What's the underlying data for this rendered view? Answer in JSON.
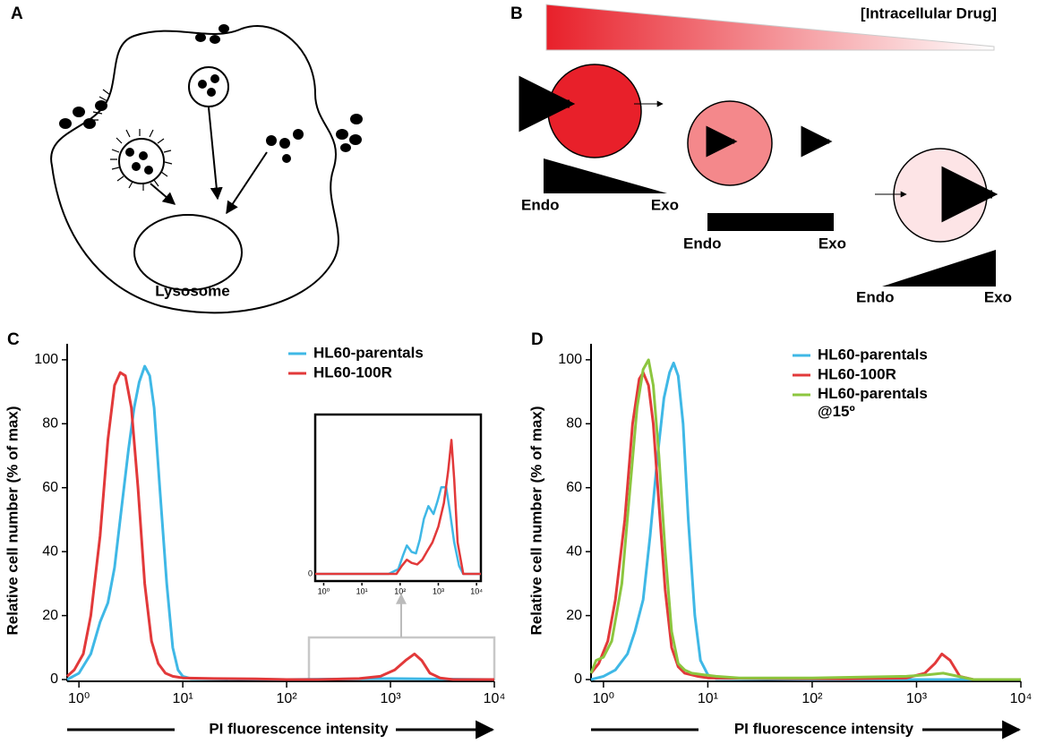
{
  "panels": {
    "A": {
      "label": "A",
      "lysosome": "Lysosome"
    },
    "B": {
      "label": "B",
      "gradient_label": "[Intracellular Drug]",
      "states": [
        {
          "endo": "Endo",
          "exo": "Exo"
        },
        {
          "endo": "Endo",
          "exo": "Exo"
        },
        {
          "endo": "Endo",
          "exo": "Exo"
        }
      ]
    }
  },
  "chart_data": [
    {
      "type": "line",
      "panel_label": "C",
      "xlabel": "PI fluorescence intensity",
      "ylabel": "Relative cell number (% of max)",
      "xscale": "log",
      "xlim": [
        0.77,
        10000
      ],
      "ylim": [
        0,
        105
      ],
      "xticks": [
        {
          "value": 1,
          "label": "10⁰"
        },
        {
          "value": 10,
          "label": "10¹"
        },
        {
          "value": 100,
          "label": "10²"
        },
        {
          "value": 1000,
          "label": "10³"
        },
        {
          "value": 10000,
          "label": "10⁴"
        }
      ],
      "yticks": [
        0,
        20,
        40,
        60,
        80,
        100
      ],
      "legend": "upper right",
      "series": [
        {
          "name": "HL60-parentals",
          "color": "#3fb8e6",
          "x": [
            0.77,
            1,
            1.3,
            1.6,
            1.9,
            2.2,
            2.6,
            3,
            3.4,
            3.8,
            4.3,
            4.8,
            5.3,
            6,
            7,
            8,
            9,
            10,
            12,
            20,
            100,
            1000,
            10000
          ],
          "values": [
            0,
            2,
            8,
            18,
            24,
            35,
            55,
            72,
            85,
            93,
            98,
            95,
            85,
            60,
            30,
            10,
            3,
            1,
            0.3,
            0.2,
            0,
            0.3,
            0
          ]
        },
        {
          "name": "HL60-100R",
          "color": "#e2393a",
          "x": [
            0.77,
            0.9,
            1.1,
            1.3,
            1.6,
            1.9,
            2.2,
            2.5,
            2.8,
            3.2,
            3.7,
            4.3,
            5,
            5.8,
            6.8,
            8,
            10,
            20,
            50,
            100,
            200,
            500,
            800,
            1100,
            1400,
            1700,
            2000,
            2400,
            3000,
            4000,
            10000
          ],
          "values": [
            1,
            3,
            8,
            20,
            45,
            75,
            92,
            96,
            95,
            85,
            60,
            30,
            12,
            5,
            2,
            1,
            0.5,
            0.3,
            0.2,
            0,
            0,
            0.3,
            1,
            3,
            6,
            8,
            6,
            2,
            0.5,
            0,
            0
          ]
        }
      ]
    },
    {
      "type": "line",
      "xscale": "log",
      "xlim": [
        0.6,
        13000
      ],
      "ylim": [
        0,
        10
      ],
      "xticks": [
        {
          "value": 1,
          "label": "10⁰"
        },
        {
          "value": 10,
          "label": "10¹"
        },
        {
          "value": 100,
          "label": "10²"
        },
        {
          "value": 1000,
          "label": "10³"
        },
        {
          "value": 10000,
          "label": "10⁴"
        }
      ],
      "yticks": [
        0
      ],
      "series": [
        {
          "color": "#3fb8e6",
          "x": [
            0.6,
            50,
            90,
            120,
            150,
            200,
            260,
            330,
            420,
            550,
            750,
            950,
            1200,
            1600,
            2000,
            2600,
            3500,
            4500,
            13000
          ],
          "values": [
            0,
            0,
            0.3,
            1.2,
            1.8,
            1.4,
            1.3,
            2.2,
            3.5,
            4.3,
            3.8,
            4.6,
            5.5,
            5.5,
            4,
            2,
            0.5,
            0,
            0
          ]
        },
        {
          "color": "#e2393a",
          "x": [
            0.6,
            80,
            110,
            150,
            200,
            280,
            380,
            500,
            700,
            1000,
            1400,
            1800,
            2200,
            2600,
            3200,
            4500,
            13000
          ],
          "values": [
            0,
            0,
            0.5,
            0.9,
            0.7,
            0.6,
            0.9,
            1.4,
            2,
            3,
            4.5,
            6.5,
            8.5,
            6,
            2,
            0,
            0
          ]
        }
      ]
    },
    {
      "type": "line",
      "panel_label": "D",
      "xlabel": "PI fluorescence intensity",
      "ylabel": "Relative cell number (% of max)",
      "xscale": "log",
      "xlim": [
        0.76,
        10000
      ],
      "ylim": [
        0,
        105
      ],
      "xticks": [
        {
          "value": 1,
          "label": "10⁰"
        },
        {
          "value": 10,
          "label": "10¹"
        },
        {
          "value": 100,
          "label": "10²"
        },
        {
          "value": 1000,
          "label": "10³"
        },
        {
          "value": 10000,
          "label": "10⁴"
        }
      ],
      "yticks": [
        0,
        20,
        40,
        60,
        80,
        100
      ],
      "legend": "upper right",
      "series": [
        {
          "name": "HL60-parentals",
          "color": "#3fb8e6",
          "x": [
            0.76,
            1,
            1.3,
            1.7,
            2,
            2.4,
            2.8,
            3.3,
            3.8,
            4.3,
            4.7,
            5.2,
            5.8,
            6.5,
            7.5,
            8.5,
            10,
            12,
            100,
            10000
          ],
          "values": [
            0,
            1,
            3,
            8,
            15,
            25,
            45,
            70,
            88,
            96,
            99,
            95,
            80,
            50,
            20,
            6,
            1.5,
            0.3,
            0,
            0
          ]
        },
        {
          "name": "HL60-100R",
          "color": "#e2393a",
          "x": [
            0.76,
            0.9,
            1.1,
            1.3,
            1.6,
            1.9,
            2.2,
            2.4,
            2.7,
            3,
            3.4,
            3.9,
            4.5,
            5.2,
            6,
            8,
            10,
            50,
            200,
            800,
            1200,
            1500,
            1750,
            2100,
            2600,
            3500,
            10000
          ],
          "values": [
            2,
            5,
            12,
            25,
            50,
            80,
            94,
            96,
            92,
            80,
            55,
            28,
            10,
            4,
            2,
            1,
            0.5,
            0.3,
            0.2,
            0.5,
            2,
            5,
            8,
            6,
            1,
            0,
            0
          ]
        },
        {
          "name": "HL60-parentals\n@15º",
          "color": "#8cc63f",
          "x": [
            0.76,
            0.85,
            1,
            1.2,
            1.5,
            1.8,
            2.1,
            2.4,
            2.7,
            3,
            3.4,
            3.9,
            4.5,
            5.2,
            6,
            7,
            9,
            12,
            20,
            100,
            800,
            1300,
            1800,
            2500,
            3500,
            10000
          ],
          "values": [
            2,
            6,
            7,
            12,
            30,
            60,
            85,
            97,
            100,
            92,
            70,
            40,
            15,
            5,
            3,
            2,
            1.5,
            1,
            0.5,
            0.5,
            1,
            1.5,
            2,
            1,
            0,
            0
          ]
        }
      ]
    }
  ]
}
